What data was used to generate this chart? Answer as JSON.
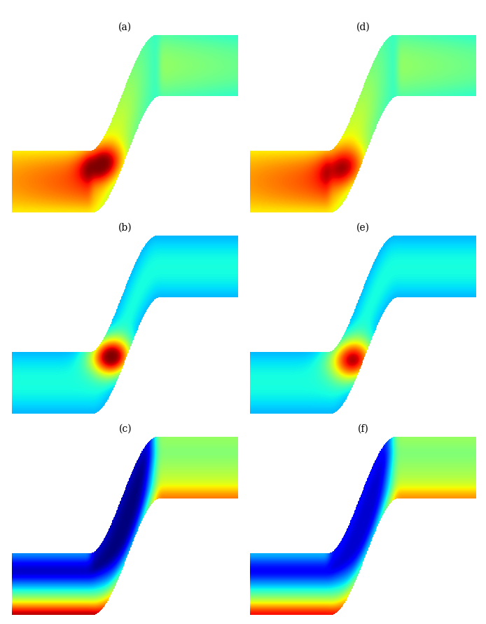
{
  "panel_labels": [
    "(a)",
    "(b)",
    "(c)",
    "(d)",
    "(e)",
    "(f)"
  ],
  "fig_width": 6.94,
  "fig_height": 8.9,
  "background_color": "#ffffff",
  "colormap": "jet",
  "label_fontsize": 10
}
